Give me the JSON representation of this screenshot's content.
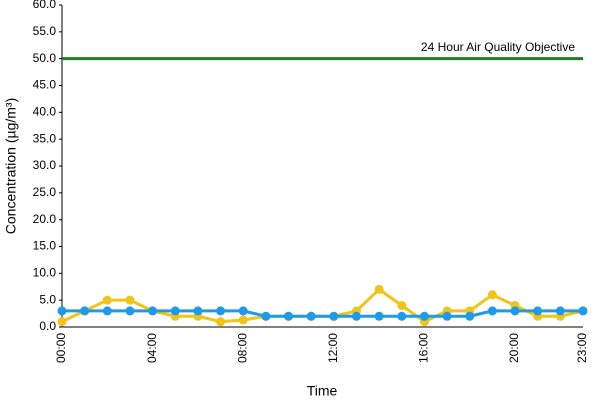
{
  "chart_data": {
    "type": "line",
    "x_label": "Time",
    "y_label": "Concentration (µg/m³)",
    "categories": [
      "00:00",
      null,
      null,
      null,
      "04:00",
      null,
      null,
      null,
      "08:00",
      null,
      null,
      null,
      "12:00",
      null,
      null,
      null,
      "16:00",
      null,
      null,
      null,
      "20:00",
      null,
      null,
      "23:00"
    ],
    "series": [
      {
        "color": "#f0c419",
        "values": [
          1,
          3,
          5,
          5,
          3,
          2,
          2,
          1,
          1.3,
          2,
          2,
          2,
          2,
          3,
          7,
          4,
          1,
          3,
          3,
          6,
          4,
          2,
          2,
          3
        ]
      },
      {
        "color": "#1e9be8",
        "values": [
          3,
          3,
          3,
          3,
          3,
          3,
          3,
          3,
          3,
          2,
          2,
          2,
          2,
          2,
          2,
          2,
          2,
          2,
          2,
          3,
          3,
          3,
          3,
          3
        ]
      }
    ],
    "reference_line": {
      "value": 50,
      "label": "24 Hour Air Quality Objective",
      "color": "#1e7b1e"
    },
    "ylim": [
      0,
      60
    ],
    "yticks": [
      {
        "value": 0,
        "label": "0.0"
      },
      {
        "value": 5,
        "label": "5.0"
      },
      {
        "value": 10,
        "label": "10.0"
      },
      {
        "value": 15,
        "label": "15.0"
      },
      {
        "value": 20,
        "label": "20.0"
      },
      {
        "value": 25,
        "label": "25.0"
      },
      {
        "value": 30,
        "label": "30.0"
      },
      {
        "value": 35,
        "label": "35.0"
      },
      {
        "value": 40,
        "label": "40.0"
      },
      {
        "value": 45,
        "label": "45.0"
      },
      {
        "value": 50,
        "label": "50.0"
      },
      {
        "value": 55,
        "label": "55.0"
      },
      {
        "value": 60,
        "label": "60.0"
      }
    ],
    "grid": false
  }
}
